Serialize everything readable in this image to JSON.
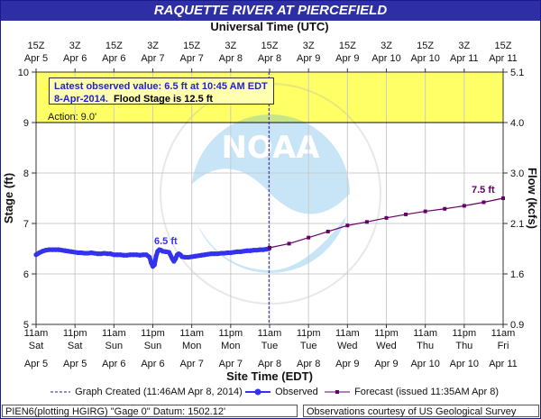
{
  "header": {
    "title": "RAQUETTE RIVER AT PIERCEFIELD"
  },
  "top_axis": {
    "title": "Universal Time (UTC)"
  },
  "bottom_axis": {
    "title": "Site Time (EDT)"
  },
  "colors": {
    "observed": "#3333ee",
    "forecast": "#660066",
    "flood_band": "#ffff66",
    "plot_bg": "#ffffff",
    "accent": "#2e2ea6"
  },
  "info_box": {
    "line1": "Latest observed value: 6.5 ft at 10:45 AM EDT",
    "line2_date": "8-Apr-2014.",
    "line2_flood": "Flood Stage is 12.5 ft"
  },
  "action_label": "Action:  9.0'",
  "observed_label": "6.5 ft",
  "forecast_label": "7.5 ft",
  "legend": {
    "graph_created": "Graph Created (11:46AM Apr 8, 2014)",
    "observed": "Observed",
    "forecast": "Forecast (issued 11:35AM Apr 8)"
  },
  "footer": {
    "left": "PIEN6(plotting HGIRG) \"Gage 0\" Datum: 1502.12'",
    "right": "Observations courtesy of US Geological Survey"
  },
  "chart_data": {
    "type": "line",
    "title": "RAQUETTE RIVER AT PIERCEFIELD",
    "ylabel": "Stage (ft)",
    "y2label": "Flow (kcfs)",
    "xlabel": "Site Time (EDT)",
    "x2label": "Universal Time (UTC)",
    "ylim": [
      5,
      10
    ],
    "y_ticks": [
      5,
      6,
      7,
      8,
      9,
      10
    ],
    "y2_ticks": [
      "0.9",
      "1.6",
      "2.1",
      "3.0",
      "4.0",
      "5.1"
    ],
    "x_hours_range": [
      0,
      144
    ],
    "x_tick_top": [
      {
        "h": 0,
        "l1": "15Z",
        "l2": "Apr  5"
      },
      {
        "h": 12,
        "l1": "3Z",
        "l2": "Apr  6"
      },
      {
        "h": 24,
        "l1": "15Z",
        "l2": "Apr  6"
      },
      {
        "h": 36,
        "l1": "3Z",
        "l2": "Apr  7"
      },
      {
        "h": 48,
        "l1": "15Z",
        "l2": "Apr  7"
      },
      {
        "h": 60,
        "l1": "3Z",
        "l2": "Apr  8"
      },
      {
        "h": 72,
        "l1": "15Z",
        "l2": "Apr  8"
      },
      {
        "h": 84,
        "l1": "3Z",
        "l2": "Apr  9"
      },
      {
        "h": 96,
        "l1": "15Z",
        "l2": "Apr  9"
      },
      {
        "h": 108,
        "l1": "3Z",
        "l2": "Apr 10"
      },
      {
        "h": 120,
        "l1": "15Z",
        "l2": "Apr 10"
      },
      {
        "h": 132,
        "l1": "3Z",
        "l2": "Apr 11"
      },
      {
        "h": 144,
        "l1": "15Z",
        "l2": "Apr 11"
      }
    ],
    "x_tick_bottom": [
      {
        "h": 0,
        "l1": "11am",
        "l2": "Sat",
        "l3": "Apr 5"
      },
      {
        "h": 12,
        "l1": "11pm",
        "l2": "Sat",
        "l3": "Apr 5"
      },
      {
        "h": 24,
        "l1": "11am",
        "l2": "Sun",
        "l3": "Apr 6"
      },
      {
        "h": 36,
        "l1": "11pm",
        "l2": "Sun",
        "l3": "Apr 6"
      },
      {
        "h": 48,
        "l1": "11am",
        "l2": "Mon",
        "l3": "Apr 7"
      },
      {
        "h": 60,
        "l1": "11pm",
        "l2": "Mon",
        "l3": "Apr 7"
      },
      {
        "h": 72,
        "l1": "11am",
        "l2": "Tue",
        "l3": "Apr 8"
      },
      {
        "h": 84,
        "l1": "11pm",
        "l2": "Tue",
        "l3": "Apr 8"
      },
      {
        "h": 96,
        "l1": "11am",
        "l2": "Wed",
        "l3": "Apr 9"
      },
      {
        "h": 108,
        "l1": "11pm",
        "l2": "Wed",
        "l3": "Apr 9"
      },
      {
        "h": 120,
        "l1": "11am",
        "l2": "Thu",
        "l3": "Apr 10"
      },
      {
        "h": 132,
        "l1": "11pm",
        "l2": "Thu",
        "l3": "Apr 10"
      },
      {
        "h": 144,
        "l1": "11am",
        "l2": "Fri",
        "l3": "Apr 11"
      }
    ],
    "action_stage": 9.0,
    "flood_stage": 12.5,
    "graph_created_hour": 71.8,
    "series": [
      {
        "name": "Observed",
        "x": [
          0,
          1,
          2,
          3,
          4,
          5,
          6,
          7,
          8,
          9,
          10,
          11,
          12,
          13,
          14,
          15,
          16,
          17,
          18,
          19,
          20,
          21,
          22,
          23,
          24,
          25,
          26,
          27,
          28,
          29,
          30,
          31,
          32,
          33,
          34,
          35,
          35.5,
          36,
          36.5,
          37,
          37.5,
          38,
          38.5,
          39,
          40,
          41,
          42,
          42.5,
          43,
          43.5,
          44,
          44.5,
          45,
          46,
          47,
          48,
          49,
          50,
          51,
          52,
          53,
          54,
          55,
          56,
          57,
          58,
          59,
          60,
          61,
          62,
          63,
          64,
          65,
          66,
          67,
          68,
          69,
          70,
          71,
          71.8
        ],
        "values": [
          6.38,
          6.42,
          6.45,
          6.47,
          6.48,
          6.48,
          6.48,
          6.48,
          6.47,
          6.46,
          6.45,
          6.44,
          6.43,
          6.42,
          6.42,
          6.41,
          6.41,
          6.42,
          6.41,
          6.4,
          6.4,
          6.41,
          6.4,
          6.4,
          6.38,
          6.38,
          6.38,
          6.37,
          6.37,
          6.38,
          6.38,
          6.38,
          6.37,
          6.38,
          6.38,
          6.33,
          6.22,
          6.15,
          6.18,
          6.35,
          6.45,
          6.48,
          6.47,
          6.45,
          6.44,
          6.43,
          6.3,
          6.25,
          6.3,
          6.38,
          6.4,
          6.38,
          6.34,
          6.33,
          6.33,
          6.34,
          6.35,
          6.36,
          6.37,
          6.38,
          6.39,
          6.4,
          6.4,
          6.4,
          6.41,
          6.41,
          6.42,
          6.42,
          6.43,
          6.44,
          6.44,
          6.45,
          6.46,
          6.46,
          6.47,
          6.47,
          6.48,
          6.48,
          6.49,
          6.5
        ]
      },
      {
        "name": "Forecast",
        "x": [
          72,
          78,
          84,
          90,
          96,
          102,
          108,
          114,
          120,
          126,
          132,
          138,
          144
        ],
        "values": [
          6.52,
          6.6,
          6.72,
          6.84,
          6.96,
          7.03,
          7.11,
          7.18,
          7.24,
          7.29,
          7.35,
          7.42,
          7.5
        ]
      }
    ]
  }
}
